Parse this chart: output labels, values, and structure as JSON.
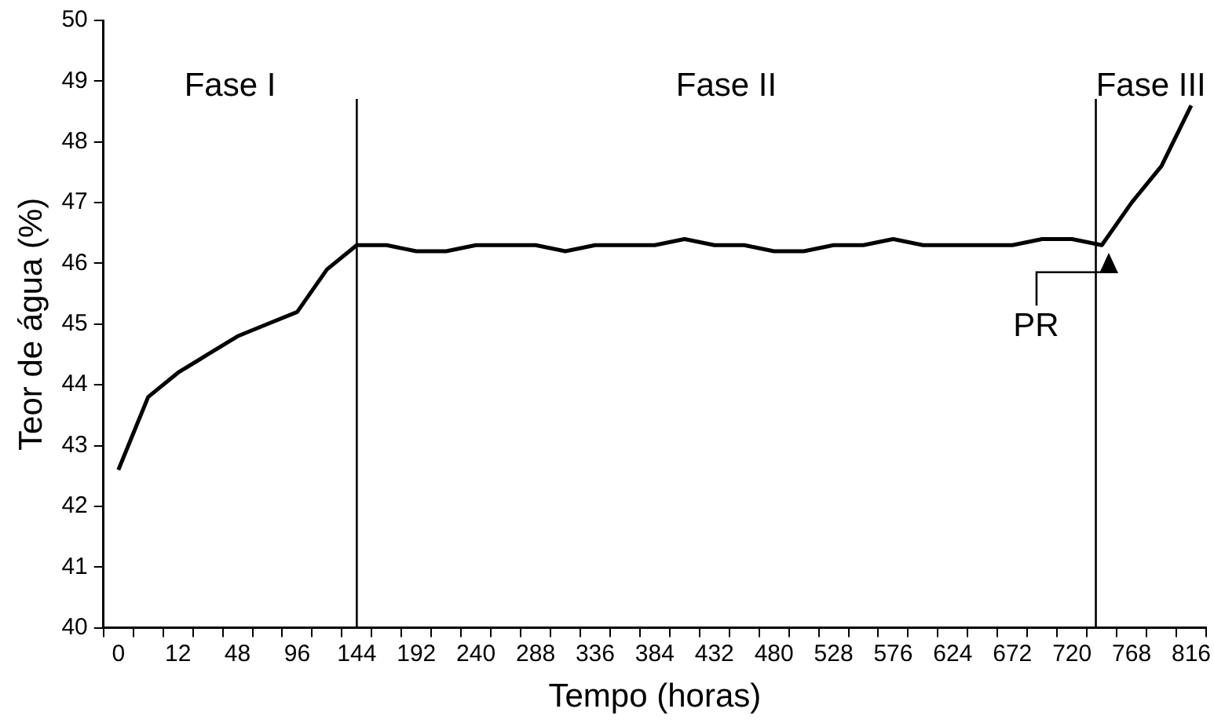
{
  "chart_data": {
    "type": "line",
    "xlabel": "Tempo (horas)",
    "ylabel": "Teor de água (%)",
    "categories": [
      "0",
      null,
      "12",
      null,
      "48",
      null,
      "96",
      null,
      "144",
      null,
      "192",
      null,
      "240",
      null,
      "288",
      null,
      "336",
      null,
      "384",
      null,
      "432",
      null,
      "480",
      null,
      "528",
      null,
      "576",
      null,
      "624",
      null,
      "672",
      null,
      "720",
      null,
      "768",
      null,
      "816"
    ],
    "series": [
      {
        "color": "#000000",
        "values": [
          42.6,
          43.8,
          44.2,
          44.5,
          44.8,
          45.0,
          45.2,
          45.9,
          46.3,
          46.3,
          46.2,
          46.2,
          46.3,
          46.3,
          46.3,
          46.2,
          46.3,
          46.3,
          46.3,
          46.4,
          46.3,
          46.3,
          46.2,
          46.2,
          46.3,
          46.3,
          46.4,
          46.3,
          46.3,
          46.3,
          46.3,
          46.4,
          46.4,
          46.3,
          47.0,
          47.6,
          48.6
        ]
      }
    ],
    "ylim": [
      40,
      50
    ],
    "yticks": [
      40,
      41,
      42,
      43,
      44,
      45,
      46,
      47,
      48,
      49,
      50
    ],
    "ref_lines": [
      {
        "axis": "x",
        "value": "144",
        "color": "#000000"
      }
    ],
    "annotations": [
      "Fase I",
      "Fase II",
      "Fase III",
      "PR"
    ],
    "grid": false,
    "legend": false,
    "marker": "none",
    "line_style": "solid"
  }
}
